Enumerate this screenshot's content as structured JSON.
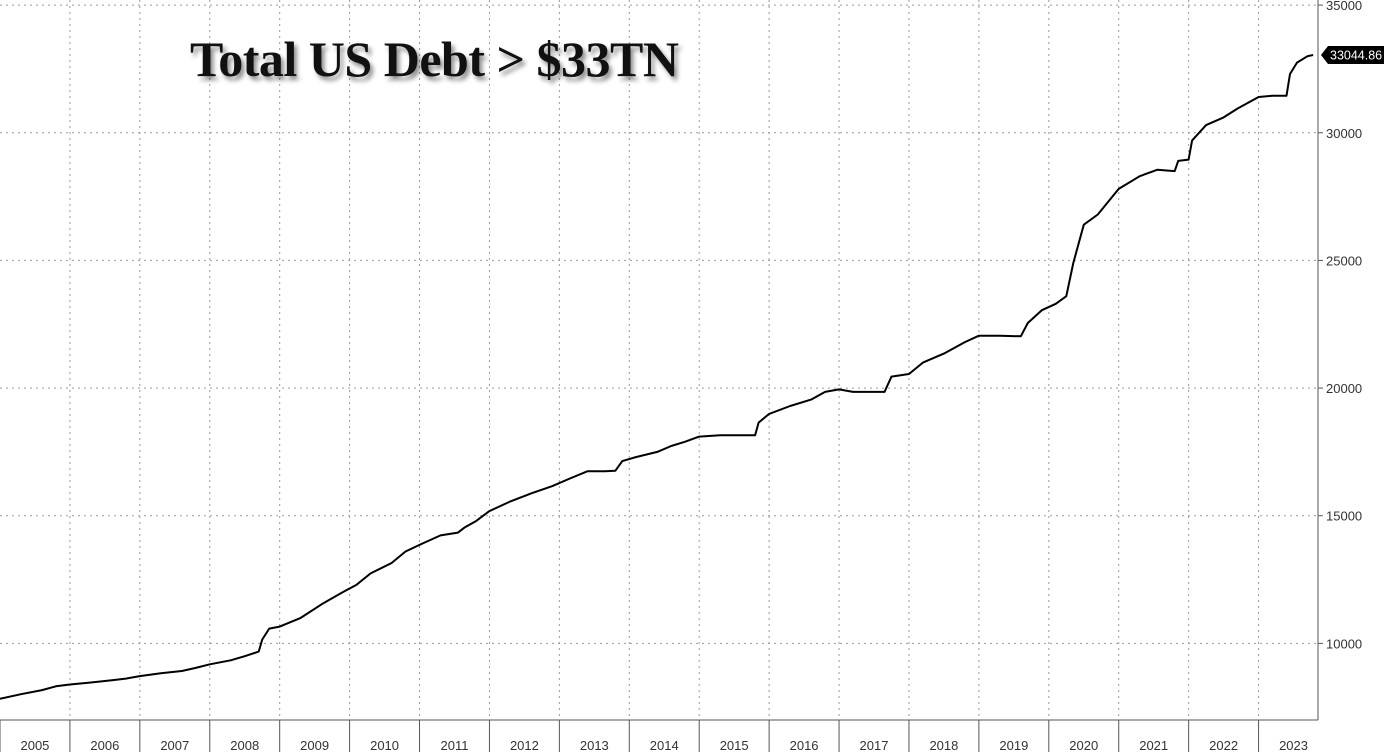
{
  "chart_data": {
    "type": "line",
    "title": "Total US Debt > $33TN",
    "xlabel": "",
    "ylabel": "",
    "x_tick_labels": [
      "2005",
      "2006",
      "2007",
      "2008",
      "2009",
      "2010",
      "2011",
      "2012",
      "2013",
      "2014",
      "2015",
      "2016",
      "2017",
      "2018",
      "2019",
      "2020",
      "2021",
      "2022",
      "2023"
    ],
    "y_tick_labels": [
      "10000",
      "15000",
      "20000",
      "25000",
      "30000",
      "35000"
    ],
    "xlim": [
      2005.0,
      2023.85
    ],
    "ylim": [
      7000,
      35200
    ],
    "grid": true,
    "grid_style": "dotted",
    "y_axis_side": "right",
    "last_value_label": "33044.86",
    "series": [
      {
        "color": "#000000",
        "points": [
          [
            2005.0,
            7830
          ],
          [
            2005.3,
            8010
          ],
          [
            2005.6,
            8170
          ],
          [
            2005.8,
            8320
          ],
          [
            2006.0,
            8390
          ],
          [
            2006.3,
            8470
          ],
          [
            2006.6,
            8560
          ],
          [
            2006.8,
            8620
          ],
          [
            2007.0,
            8720
          ],
          [
            2007.3,
            8830
          ],
          [
            2007.6,
            8920
          ],
          [
            2007.8,
            9040
          ],
          [
            2008.0,
            9180
          ],
          [
            2008.3,
            9340
          ],
          [
            2008.5,
            9500
          ],
          [
            2008.7,
            9680
          ],
          [
            2008.75,
            10150
          ],
          [
            2008.85,
            10580
          ],
          [
            2009.0,
            10660
          ],
          [
            2009.3,
            11000
          ],
          [
            2009.6,
            11530
          ],
          [
            2009.9,
            12000
          ],
          [
            2010.1,
            12300
          ],
          [
            2010.3,
            12740
          ],
          [
            2010.6,
            13150
          ],
          [
            2010.8,
            13600
          ],
          [
            2011.0,
            13860
          ],
          [
            2011.3,
            14230
          ],
          [
            2011.55,
            14340
          ],
          [
            2011.65,
            14550
          ],
          [
            2011.8,
            14780
          ],
          [
            2012.0,
            15180
          ],
          [
            2012.3,
            15560
          ],
          [
            2012.6,
            15880
          ],
          [
            2012.9,
            16160
          ],
          [
            2013.15,
            16460
          ],
          [
            2013.4,
            16740
          ],
          [
            2013.65,
            16740
          ],
          [
            2013.8,
            16760
          ],
          [
            2013.9,
            17140
          ],
          [
            2014.1,
            17300
          ],
          [
            2014.4,
            17500
          ],
          [
            2014.6,
            17730
          ],
          [
            2014.8,
            17900
          ],
          [
            2015.0,
            18100
          ],
          [
            2015.3,
            18150
          ],
          [
            2015.6,
            18150
          ],
          [
            2015.8,
            18150
          ],
          [
            2015.85,
            18650
          ],
          [
            2016.0,
            18990
          ],
          [
            2016.3,
            19300
          ],
          [
            2016.6,
            19550
          ],
          [
            2016.8,
            19850
          ],
          [
            2017.0,
            19950
          ],
          [
            2017.2,
            19850
          ],
          [
            2017.5,
            19850
          ],
          [
            2017.65,
            19850
          ],
          [
            2017.75,
            20450
          ],
          [
            2018.0,
            20550
          ],
          [
            2018.2,
            21000
          ],
          [
            2018.5,
            21350
          ],
          [
            2018.8,
            21800
          ],
          [
            2019.0,
            22050
          ],
          [
            2019.3,
            22050
          ],
          [
            2019.6,
            22030
          ],
          [
            2019.7,
            22550
          ],
          [
            2019.9,
            23050
          ],
          [
            2020.1,
            23300
          ],
          [
            2020.25,
            23600
          ],
          [
            2020.35,
            24900
          ],
          [
            2020.5,
            26400
          ],
          [
            2020.7,
            26800
          ],
          [
            2021.0,
            27800
          ],
          [
            2021.3,
            28300
          ],
          [
            2021.55,
            28550
          ],
          [
            2021.8,
            28500
          ],
          [
            2021.85,
            28900
          ],
          [
            2022.0,
            28950
          ],
          [
            2022.05,
            29700
          ],
          [
            2022.25,
            30300
          ],
          [
            2022.5,
            30600
          ],
          [
            2022.7,
            30950
          ],
          [
            2023.0,
            31400
          ],
          [
            2023.2,
            31450
          ],
          [
            2023.4,
            31450
          ],
          [
            2023.45,
            32300
          ],
          [
            2023.55,
            32750
          ],
          [
            2023.7,
            33000
          ],
          [
            2023.78,
            33044.86
          ]
        ]
      }
    ]
  },
  "colors": {
    "background": "#ffffff",
    "grid": "#9a9a9a",
    "axis": "#555555",
    "line": "#000000",
    "last_label_bg": "#000000",
    "last_label_fg": "#ffffff"
  }
}
